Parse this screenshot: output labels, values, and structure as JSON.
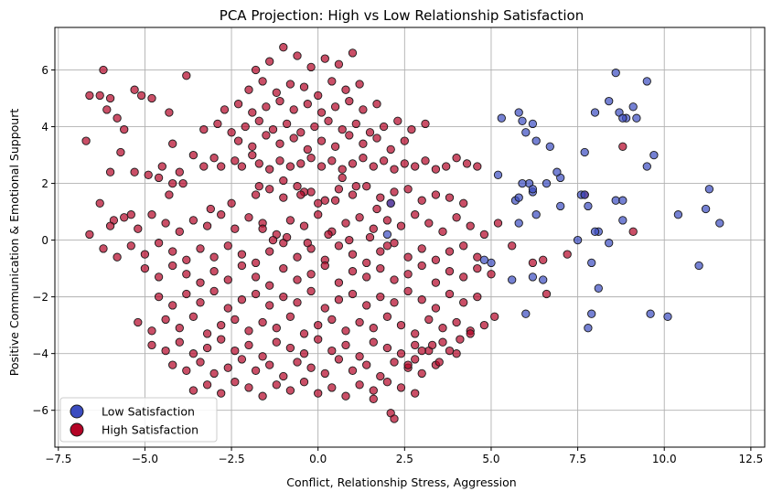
{
  "chart_data": {
    "type": "scatter",
    "title": "PCA Projection: High vs Low Relationship Satisfaction",
    "xlabel": "Conflict, Relationship Stress, Aggression",
    "ylabel": "Positive Communication & Emotional Suppourt",
    "xlim": [
      -7.6,
      12.9
    ],
    "ylim": [
      -7.3,
      7.5
    ],
    "xticks": [
      -7.5,
      -5.0,
      -2.5,
      0.0,
      2.5,
      5.0,
      7.5,
      10.0,
      12.5
    ],
    "xtick_labels": [
      "−7.5",
      "−5.0",
      "−2.5",
      "0.0",
      "2.5",
      "5.0",
      "7.5",
      "10.0",
      "12.5"
    ],
    "yticks": [
      -6,
      -4,
      -2,
      0,
      2,
      4,
      6
    ],
    "ytick_labels": [
      "−6",
      "−4",
      "−2",
      "0",
      "2",
      "4",
      "6"
    ],
    "grid": true,
    "legend_position": "lower-left",
    "colors": {
      "low": "#3b4cc0",
      "high": "#b40426",
      "edge": "#1a1a1a",
      "grid": "#b0b0b0"
    },
    "series": [
      {
        "name": "Low Satisfaction",
        "color": "#3b4cc0",
        "x": [
          5.3,
          5.8,
          5.9,
          6.2,
          6.7,
          8.6,
          9.5,
          8.4,
          9.1,
          8.7,
          8.9,
          7.7,
          8.8,
          9.7,
          9.5,
          10.4,
          11.3,
          11.6,
          11.2,
          7.5,
          6.3,
          6.0,
          6.1,
          5.9,
          5.7,
          5.8,
          6.2,
          6.3,
          6.2,
          7.0,
          6.6,
          6.9,
          7.0,
          7.6,
          7.7,
          7.8,
          8.1,
          8.4,
          8.6,
          8.8,
          8.8,
          8.0,
          9.2,
          8.0,
          7.9,
          7.9,
          7.8,
          8.1,
          9.6,
          10.1,
          11.0,
          5.0,
          4.8,
          5.6,
          6.0,
          6.2,
          6.5,
          5.8,
          5.2,
          2.1,
          2.0
        ],
        "y": [
          4.3,
          4.5,
          4.2,
          4.1,
          3.3,
          5.9,
          5.6,
          4.9,
          4.7,
          4.5,
          4.3,
          3.1,
          0.7,
          3.0,
          2.6,
          0.9,
          1.8,
          0.6,
          1.1,
          0.0,
          3.5,
          3.8,
          2.0,
          2.0,
          1.4,
          1.5,
          1.7,
          0.9,
          1.8,
          2.2,
          2.0,
          2.4,
          1.2,
          1.6,
          1.6,
          1.2,
          0.3,
          -0.1,
          1.4,
          1.4,
          4.3,
          4.5,
          4.3,
          0.3,
          -0.8,
          -2.6,
          -3.1,
          -1.7,
          -2.6,
          -2.7,
          -0.9,
          -0.8,
          -0.7,
          -1.4,
          -2.6,
          -1.3,
          -1.4,
          0.6,
          2.3,
          1.3,
          0.2
        ]
      },
      {
        "name": "High Satisfaction",
        "color": "#b40426",
        "x": [
          -6.6,
          -6.7,
          -6.2,
          -6.3,
          -6.0,
          -6.1,
          -5.8,
          -5.6,
          -6.3,
          -5.3,
          -5.1,
          -4.8,
          -4.3,
          -4.5,
          -3.8,
          -4.2,
          -5.7,
          -6.0,
          -5.9,
          -5.4,
          -5.3,
          -4.9,
          -4.6,
          -4.2,
          -4.0,
          -3.6,
          -3.3,
          -3.0,
          -2.8,
          -2.4,
          -2.2,
          -1.9,
          -1.7,
          -1.4,
          -1.1,
          -0.8,
          -0.5,
          -0.2,
          0.1,
          0.4,
          0.7,
          1.0,
          1.3,
          1.6,
          1.9,
          2.2,
          2.5,
          2.8,
          3.1,
          3.4,
          3.7,
          4.0,
          4.3,
          4.6,
          -1.8,
          -1.4,
          -1.0,
          -0.6,
          -0.2,
          0.2,
          0.6,
          1.0,
          1.4,
          1.8,
          2.2,
          2.6,
          3.0,
          3.4,
          3.8,
          4.2,
          -6.6,
          -6.0,
          -5.6,
          -5.2,
          -4.8,
          -4.4,
          -4.0,
          -3.6,
          -3.2,
          -2.8,
          -2.4,
          -2.0,
          -1.6,
          -1.2,
          -0.8,
          -0.4,
          0.0,
          0.4,
          0.8,
          1.2,
          1.6,
          2.0,
          2.4,
          2.8,
          3.2,
          3.6,
          4.0,
          4.4,
          4.8,
          5.2,
          -6.2,
          -5.8,
          -5.4,
          -5.0,
          -4.6,
          -4.2,
          -3.8,
          -3.4,
          -3.0,
          -2.6,
          -2.2,
          -1.8,
          -1.4,
          -1.0,
          -0.6,
          -0.2,
          0.2,
          0.6,
          1.0,
          1.4,
          1.8,
          2.2,
          2.6,
          3.0,
          3.4,
          3.8,
          4.2,
          4.6,
          -5.0,
          -4.6,
          -4.2,
          -3.8,
          -3.4,
          -3.0,
          -2.6,
          -2.2,
          -1.8,
          -1.4,
          -1.0,
          -0.6,
          -0.2,
          0.2,
          0.6,
          1.0,
          1.4,
          1.8,
          2.2,
          2.6,
          3.0,
          3.4,
          3.8,
          4.2,
          4.6,
          5.0,
          -4.6,
          -4.2,
          -3.8,
          -3.4,
          -3.0,
          -2.6,
          -2.2,
          -1.8,
          -1.4,
          -1.0,
          -0.6,
          -0.2,
          0.2,
          0.6,
          1.0,
          1.4,
          1.8,
          2.2,
          2.6,
          3.0,
          3.4,
          3.8,
          4.2,
          4.6,
          -5.2,
          -4.8,
          -4.4,
          -4.0,
          -3.6,
          -3.2,
          -2.8,
          -2.4,
          -2.0,
          -1.6,
          -1.2,
          -0.8,
          -0.4,
          0.0,
          0.4,
          0.8,
          1.2,
          1.6,
          2.0,
          2.4,
          2.8,
          3.2,
          3.6,
          4.0,
          4.4,
          -4.8,
          -4.4,
          -4.0,
          -3.6,
          -3.2,
          -2.8,
          -2.4,
          -2.0,
          -1.6,
          -1.2,
          -0.8,
          -0.4,
          0.0,
          0.4,
          0.8,
          1.2,
          1.6,
          2.0,
          2.4,
          2.8,
          3.2,
          3.6,
          4.0,
          -4.2,
          -3.8,
          -3.4,
          -3.0,
          -2.6,
          -2.2,
          -1.8,
          -1.4,
          -1.0,
          -0.6,
          -0.2,
          0.2,
          0.6,
          1.0,
          1.4,
          1.8,
          2.2,
          2.6,
          3.0,
          3.4,
          -3.6,
          -3.2,
          -2.8,
          -2.4,
          -2.0,
          -1.6,
          -1.2,
          -0.8,
          -0.4,
          0.0,
          0.4,
          0.8,
          1.2,
          1.6,
          2.0,
          2.4,
          2.8,
          -4.3,
          -3.9,
          -3.1,
          -2.5,
          -1.7,
          -1.0,
          -0.4,
          0.0,
          0.5,
          1.1,
          1.7,
          2.1,
          0.7,
          -0.5,
          -1.6,
          -1.3,
          -0.9,
          -0.3,
          0.3,
          0.9,
          1.5,
          2.0,
          -2.3,
          -1.9,
          -1.5,
          -1.1,
          -0.7,
          -0.3,
          0.1,
          0.5,
          0.9,
          1.3,
          1.7,
          2.1,
          2.5,
          -3.3,
          -2.9,
          -2.5,
          -2.1,
          -1.7,
          -1.3,
          -0.9,
          -0.5,
          -0.1,
          0.3,
          0.7,
          1.1,
          1.5,
          1.9,
          2.3,
          2.7,
          3.1,
          -2.7,
          -2.3,
          -1.9,
          -1.5,
          -1.1,
          -0.7,
          -0.3,
          0.1,
          0.5,
          0.9,
          1.3,
          1.7,
          -2.0,
          -1.6,
          -1.2,
          -0.8,
          -0.4,
          0.0,
          0.4,
          0.8,
          1.2,
          -1.8,
          -1.4,
          -1.0,
          -0.6,
          -0.2,
          0.2,
          0.6,
          1.0,
          6.5,
          7.7,
          8.8,
          9.1,
          6.2,
          6.6,
          7.2,
          5.6,
          2.1,
          2.2,
          1.6,
          2.8,
          2.6,
          3.0,
          3.3,
          3.5,
          3.8,
          4.1,
          4.4,
          4.8,
          5.1
        ],
        "y": [
          5.1,
          3.5,
          6.0,
          5.1,
          5.0,
          4.6,
          4.3,
          3.9,
          1.3,
          5.3,
          5.1,
          5.0,
          4.5,
          2.6,
          5.8,
          3.4,
          3.1,
          2.4,
          0.7,
          0.9,
          2.4,
          2.3,
          2.2,
          2.0,
          2.4,
          3.0,
          2.6,
          2.9,
          2.6,
          2.8,
          2.6,
          3.0,
          2.7,
          2.5,
          2.8,
          2.6,
          2.7,
          2.9,
          2.6,
          2.8,
          2.5,
          2.7,
          2.9,
          2.6,
          2.8,
          2.5,
          2.7,
          2.6,
          2.8,
          2.5,
          2.6,
          2.9,
          2.7,
          2.6,
          1.6,
          1.8,
          1.5,
          1.9,
          1.7,
          1.4,
          1.8,
          1.6,
          1.9,
          1.5,
          1.7,
          1.8,
          1.4,
          1.6,
          1.5,
          1.3,
          0.2,
          0.5,
          0.8,
          0.4,
          0.9,
          0.6,
          0.3,
          0.7,
          0.5,
          0.9,
          0.4,
          0.8,
          0.6,
          0.2,
          0.7,
          0.5,
          0.9,
          0.3,
          0.6,
          0.8,
          0.4,
          0.7,
          0.5,
          0.9,
          0.6,
          0.3,
          0.8,
          0.5,
          0.2,
          0.6,
          -0.3,
          -0.6,
          -0.2,
          -0.5,
          -0.1,
          -0.4,
          -0.7,
          -0.3,
          -0.6,
          -0.2,
          -0.5,
          -0.8,
          -0.4,
          -0.1,
          -0.6,
          -0.3,
          -0.7,
          -0.2,
          -0.5,
          -0.8,
          -0.4,
          -0.1,
          -0.6,
          -0.3,
          -0.7,
          -0.4,
          -0.2,
          -0.6,
          -1.0,
          -1.3,
          -0.9,
          -1.2,
          -1.5,
          -1.1,
          -1.4,
          -0.9,
          -1.3,
          -1.6,
          -1.0,
          -1.4,
          -1.2,
          -0.9,
          -1.5,
          -1.1,
          -1.3,
          -1.0,
          -1.4,
          -1.2,
          -0.9,
          -1.5,
          -1.1,
          -1.3,
          -1.0,
          -1.2,
          -2.0,
          -2.3,
          -1.9,
          -2.2,
          -1.8,
          -2.4,
          -2.1,
          -1.9,
          -2.3,
          -2.0,
          -2.2,
          -1.8,
          -2.4,
          -2.1,
          -1.9,
          -2.3,
          -2.0,
          -2.2,
          -1.8,
          -2.1,
          -2.4,
          -1.9,
          -2.2,
          -2.0,
          -2.9,
          -3.2,
          -2.8,
          -3.1,
          -2.7,
          -3.3,
          -3.0,
          -2.8,
          -3.2,
          -2.9,
          -3.1,
          -2.7,
          -3.3,
          -3.0,
          -2.8,
          -3.2,
          -2.9,
          -3.1,
          -2.7,
          -3.0,
          -3.3,
          -2.8,
          -3.1,
          -2.9,
          -3.2,
          -3.7,
          -3.9,
          -3.6,
          -4.0,
          -3.8,
          -3.5,
          -3.9,
          -3.7,
          -4.1,
          -3.6,
          -3.8,
          -4.0,
          -3.5,
          -3.9,
          -3.7,
          -4.1,
          -3.6,
          -3.8,
          -4.0,
          -3.7,
          -3.9,
          -3.6,
          -4.0,
          -4.4,
          -4.6,
          -4.3,
          -4.7,
          -4.5,
          -4.2,
          -4.6,
          -4.4,
          -4.8,
          -4.3,
          -4.5,
          -4.7,
          -4.2,
          -4.6,
          -4.4,
          -4.8,
          -4.3,
          -4.5,
          -4.7,
          -4.4,
          -5.3,
          -5.1,
          -5.4,
          -5.0,
          -5.2,
          -5.5,
          -5.1,
          -5.3,
          -5.0,
          -5.4,
          -5.2,
          -5.5,
          -5.1,
          -5.3,
          -5.0,
          -5.2,
          -5.4,
          1.6,
          2.0,
          1.1,
          1.3,
          1.9,
          2.1,
          1.7,
          1.3,
          1.4,
          1.9,
          1.1,
          1.3,
          2.2,
          1.6,
          0.4,
          0.0,
          0.1,
          -0.1,
          0.2,
          0.0,
          0.1,
          -0.2,
          3.5,
          3.3,
          3.7,
          3.4,
          3.6,
          3.2,
          3.5,
          3.3,
          3.7,
          3.4,
          3.6,
          3.2,
          3.5,
          3.9,
          4.1,
          3.8,
          4.0,
          4.2,
          3.9,
          4.1,
          3.8,
          4.0,
          4.2,
          3.9,
          4.1,
          3.8,
          4.0,
          4.2,
          3.9,
          4.1,
          4.6,
          4.8,
          4.5,
          4.7,
          4.9,
          4.6,
          4.8,
          4.5,
          4.7,
          4.9,
          4.6,
          4.8,
          5.3,
          5.6,
          5.2,
          5.5,
          5.4,
          5.1,
          5.6,
          5.3,
          5.5,
          6.0,
          6.3,
          6.8,
          6.5,
          6.1,
          6.4,
          6.2,
          6.6,
          -0.7,
          1.6,
          3.3,
          0.3,
          -0.8,
          -1.9,
          -0.5,
          -0.2,
          -6.1,
          -6.3,
          -5.6,
          -4.2,
          -4.4,
          -3.9,
          -3.7,
          -4.3,
          -3.9,
          -3.5,
          -3.3,
          -3.0,
          -2.7
        ]
      }
    ],
    "legend": [
      {
        "label": "Low Satisfaction",
        "color": "#3b4cc0"
      },
      {
        "label": "High Satisfaction",
        "color": "#b40426"
      }
    ]
  }
}
